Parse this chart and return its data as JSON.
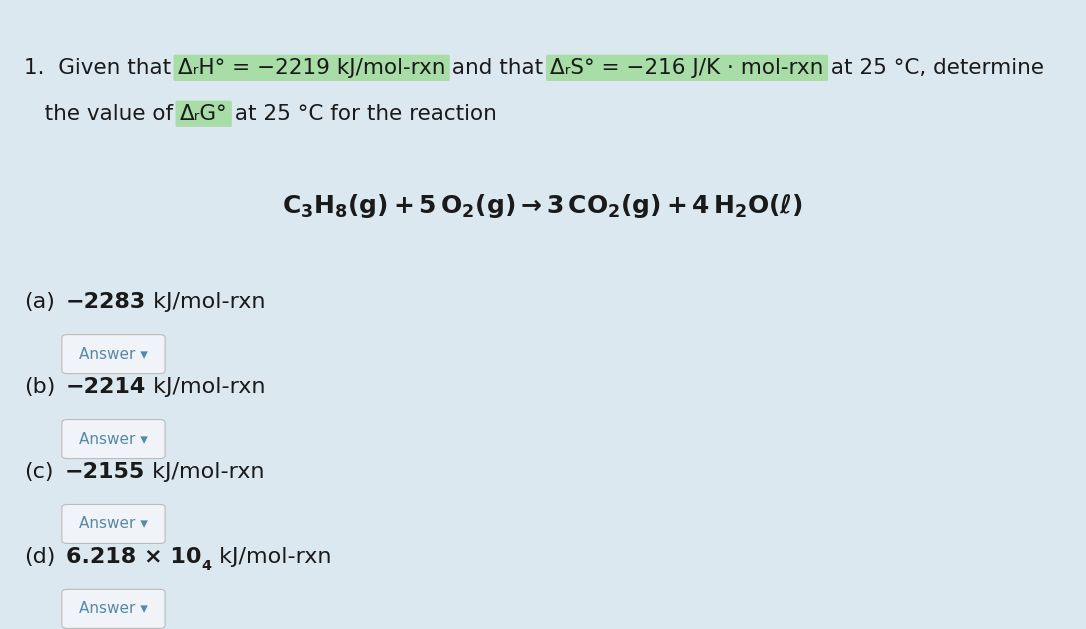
{
  "background_color": "#dce8f0",
  "highlight_color": "#a8dda8",
  "text_color": "#1a1a1a",
  "answer_button_text_color": "#5588aa",
  "answer_button_color": "#f0f4f8",
  "answer_button_border": "#bbbbbb",
  "answer_button_text": "Answer ▾",
  "line1_segments": [
    {
      "text": "1.  Given that ",
      "highlight": false
    },
    {
      "text": "ΔᵣH° = −2219 kJ/mol-rxn",
      "highlight": true
    },
    {
      "text": " and that ",
      "highlight": false
    },
    {
      "text": "ΔᵣS° = −216 J/K · mol-rxn",
      "highlight": true
    },
    {
      "text": " at 25 °C, determine",
      "highlight": false
    }
  ],
  "line2_segments": [
    {
      "text": "   the value of ",
      "highlight": false
    },
    {
      "text": "ΔᵣG°",
      "highlight": true
    },
    {
      "text": " at 25 °C for the reaction",
      "highlight": false
    }
  ],
  "options": [
    {
      "label": "(a)",
      "value": "−2283",
      "unit": " kJ/mol-rxn"
    },
    {
      "label": "(b)",
      "value": "−2214",
      "unit": " kJ/mol-rxn"
    },
    {
      "label": "(c)",
      "value": "−2155",
      "unit": " kJ/mol-rxn"
    },
    {
      "label": "(d)",
      "value": "6.218 × 10",
      "superscript": "4",
      "unit": " kJ/mol-rxn"
    }
  ],
  "fs_body": 15.5,
  "fs_reaction": 18,
  "fs_options": 16,
  "fs_button": 11
}
